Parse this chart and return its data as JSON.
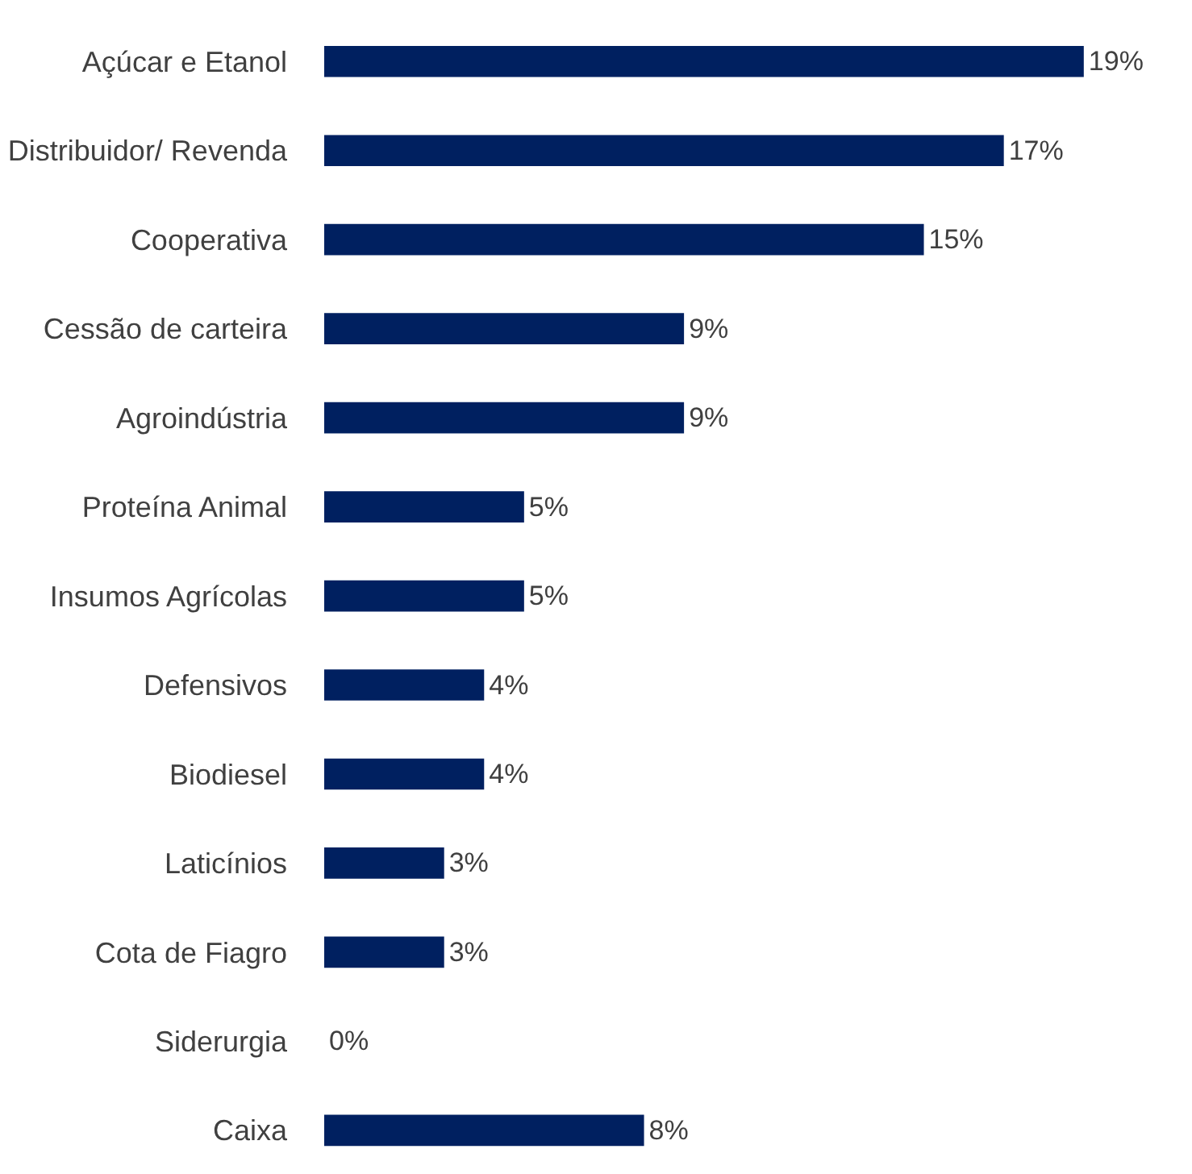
{
  "chart_data": {
    "type": "bar",
    "orientation": "horizontal",
    "categories": [
      "Açúcar e Etanol",
      "Distribuidor/ Revenda",
      "Cooperativa",
      "Cessão de carteira",
      "Agroindústria",
      "Proteína Animal",
      "Insumos Agrícolas",
      "Defensivos",
      "Biodiesel",
      "Laticínios",
      "Cota de Fiagro",
      "Siderurgia",
      "Caixa"
    ],
    "values": [
      19,
      17,
      15,
      9,
      9,
      5,
      5,
      4,
      4,
      3,
      3,
      0,
      8
    ],
    "value_labels": [
      "19%",
      "17%",
      "15%",
      "9%",
      "9%",
      "5%",
      "5%",
      "4%",
      "4%",
      "3%",
      "3%",
      "0%",
      "8%"
    ],
    "color": "#002060"
  }
}
